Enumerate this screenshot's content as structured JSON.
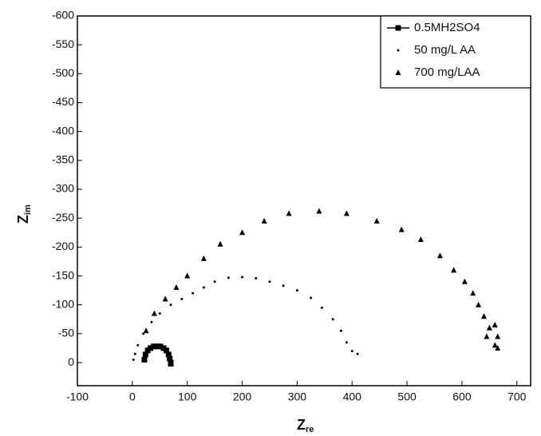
{
  "chart_data": {
    "type": "scatter",
    "x_label": {
      "text": "Z",
      "subscript": "re"
    },
    "y_label": {
      "text": "Z",
      "subscript": "im"
    },
    "xlim": [
      -100,
      725
    ],
    "ylim": [
      40,
      -600
    ],
    "xticks": [
      -100,
      0,
      100,
      200,
      300,
      400,
      500,
      600,
      700
    ],
    "yticks": [
      -600,
      -550,
      -500,
      -450,
      -400,
      -350,
      -300,
      -250,
      -200,
      -150,
      -100,
      -50,
      0
    ],
    "legend": "upper right",
    "series": [
      {
        "name": "0.5MH2SO4",
        "color": "#000000",
        "marker": "square",
        "x": [
          22,
          24,
          28,
          33,
          39,
          45,
          51,
          57,
          62,
          66,
          68,
          70,
          70
        ],
        "values": [
          -5,
          -14,
          -21,
          -25,
          -28,
          -28,
          -28,
          -25,
          -21,
          -14,
          -7,
          0,
          2
        ]
      },
      {
        "name": "50 mg/L AA",
        "color": "#000000",
        "marker": "dot",
        "x": [
          2,
          5,
          10,
          20,
          35,
          50,
          70,
          90,
          110,
          130,
          150,
          175,
          200,
          225,
          250,
          275,
          300,
          325,
          345,
          365,
          380,
          390,
          400,
          410
        ],
        "values": [
          -5,
          -15,
          -30,
          -50,
          -70,
          -85,
          -100,
          -110,
          -120,
          -130,
          -140,
          -147,
          -148,
          -146,
          -140,
          -133,
          -125,
          -112,
          -95,
          -75,
          -55,
          -35,
          -20,
          -15
        ]
      },
      {
        "name": "700 mg/LAA",
        "color": "#000000",
        "marker": "triangle",
        "x": [
          25,
          40,
          60,
          80,
          100,
          130,
          160,
          200,
          240,
          285,
          340,
          390,
          445,
          490,
          525,
          560,
          585,
          605,
          620,
          630,
          640,
          650,
          660,
          665,
          665,
          660,
          645
        ],
        "values": [
          -55,
          -85,
          -110,
          -130,
          -150,
          -180,
          -205,
          -225,
          -245,
          -258,
          -262,
          -258,
          -245,
          -230,
          -213,
          -185,
          -160,
          -140,
          -120,
          -100,
          -80,
          -60,
          -65,
          -45,
          -25,
          -30,
          -45
        ]
      }
    ]
  }
}
